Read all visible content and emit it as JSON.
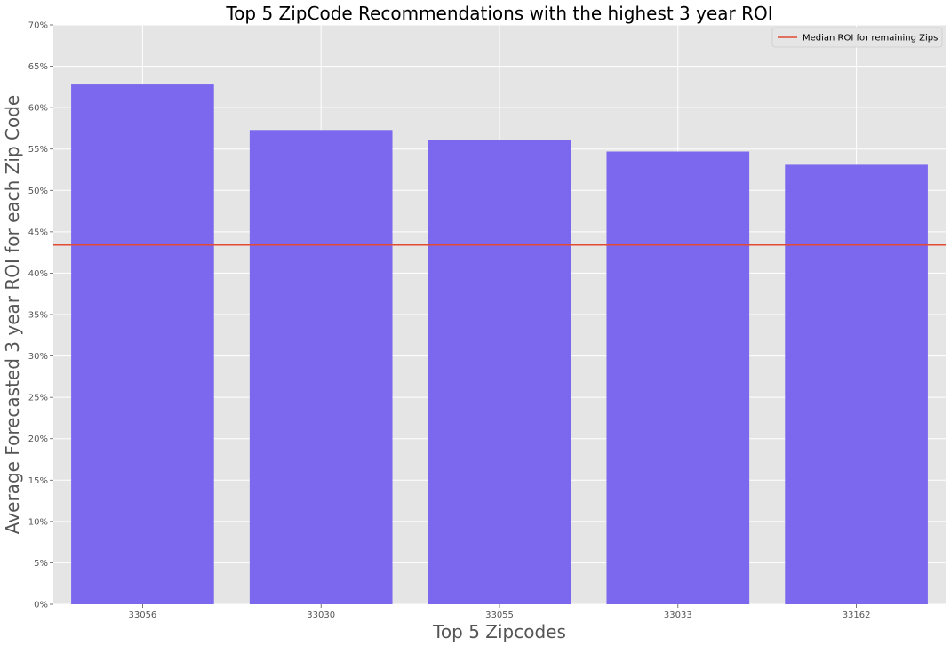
{
  "chart_data": {
    "type": "bar",
    "title": "Top 5 ZipCode Recommendations with the highest 3 year ROI",
    "xlabel": "Top 5 Zipcodes",
    "ylabel": "Average Forecasted 3 year ROI for each Zip Code",
    "categories": [
      "33056",
      "33030",
      "33055",
      "33033",
      "33162"
    ],
    "values": [
      62.8,
      57.3,
      56.1,
      54.7,
      53.1
    ],
    "ylim": [
      0,
      70
    ],
    "yticks": [
      0,
      5,
      10,
      15,
      20,
      25,
      30,
      35,
      40,
      45,
      50,
      55,
      60,
      65,
      70
    ],
    "ytick_suffix": "%",
    "reference_line": {
      "label": "Median ROI for remaining Zips",
      "value": 43.4
    },
    "legend_position": "top-right",
    "grid": true,
    "colors": {
      "bar": "#7b68ee",
      "median_line": "#e24a33",
      "axes_background": "#e5e5e5",
      "grid": "#ffffff",
      "text": "#000000",
      "label_text": "#555555",
      "tick_text": "#555555"
    }
  }
}
